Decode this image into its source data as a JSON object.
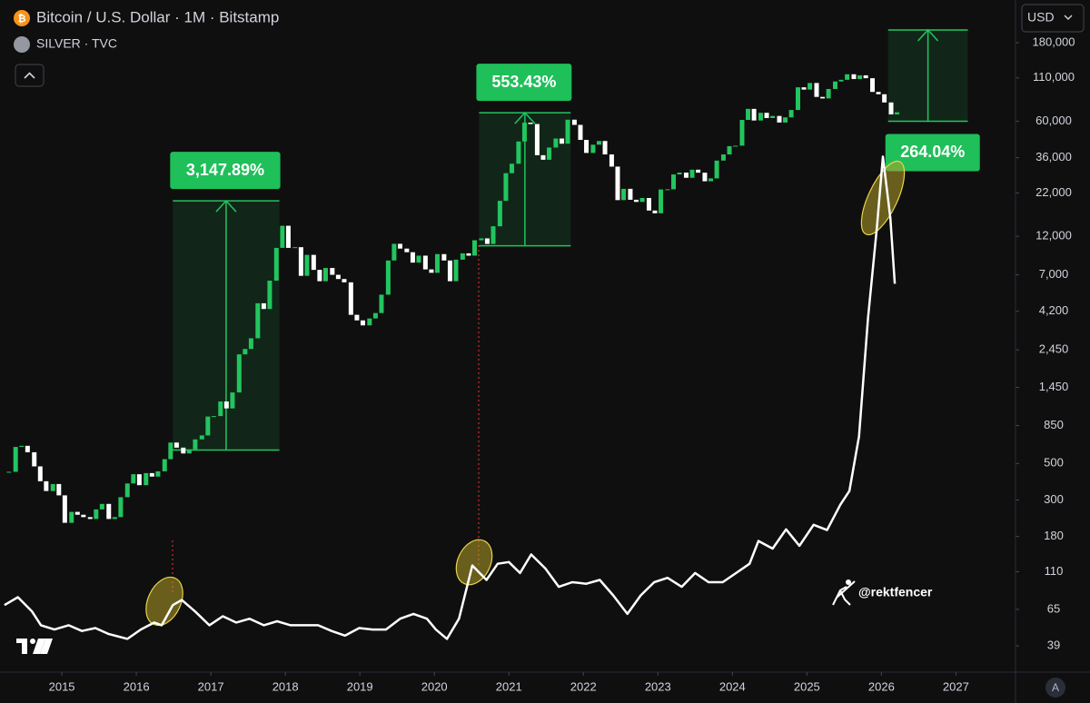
{
  "chart_data": {
    "type": "candlestick",
    "ylog": true,
    "ylim": [
      27,
      327000
    ],
    "yticks": [
      {
        "value": 180000,
        "label": "180,000"
      },
      {
        "value": 110000,
        "label": "110,000"
      },
      {
        "value": 60000,
        "label": "60,000"
      },
      {
        "value": 36000,
        "label": "36,000"
      },
      {
        "value": 22000,
        "label": "22,000"
      },
      {
        "value": 12000,
        "label": "12,000"
      },
      {
        "value": 7000,
        "label": "7,000"
      },
      {
        "value": 4200,
        "label": "4,200"
      },
      {
        "value": 2450,
        "label": "2,450"
      },
      {
        "value": 1450,
        "label": "1,450"
      },
      850,
      500,
      300,
      180,
      110,
      65,
      39
    ],
    "xlim": [
      2014.17,
      2027.8
    ],
    "xticks": [
      2015,
      2016,
      2017,
      2018,
      2019,
      2020,
      2021,
      2022,
      2023,
      2024,
      2025,
      2026,
      2027
    ],
    "currency": "USD",
    "watermark": "@rektfencer",
    "scale_mode": "A",
    "series": [
      {
        "name": "Bitcoin / U.S. Dollar · 1M · Bitstamp",
        "color": "#22c55e",
        "down_color": "#ffffff",
        "x": [
          2014.29,
          2014.38,
          2014.46,
          2014.54,
          2014.63,
          2014.71,
          2014.79,
          2014.88,
          2014.96,
          2015.04,
          2015.13,
          2015.21,
          2015.29,
          2015.38,
          2015.46,
          2015.54,
          2015.63,
          2015.71,
          2015.79,
          2015.88,
          2015.96,
          2016.04,
          2016.13,
          2016.21,
          2016.29,
          2016.38,
          2016.46,
          2016.54,
          2016.63,
          2016.71,
          2016.79,
          2016.88,
          2016.96,
          2017.04,
          2017.13,
          2017.21,
          2017.29,
          2017.38,
          2017.46,
          2017.54,
          2017.63,
          2017.71,
          2017.79,
          2017.88,
          2017.96,
          2018.04,
          2018.13,
          2018.21,
          2018.29,
          2018.38,
          2018.46,
          2018.54,
          2018.63,
          2018.71,
          2018.79,
          2018.88,
          2018.96,
          2019.04,
          2019.13,
          2019.21,
          2019.29,
          2019.38,
          2019.46,
          2019.54,
          2019.63,
          2019.71,
          2019.79,
          2019.88,
          2019.96,
          2020.04,
          2020.13,
          2020.21,
          2020.29,
          2020.38,
          2020.46,
          2020.54,
          2020.63,
          2020.71,
          2020.79,
          2020.88,
          2020.96,
          2021.04,
          2021.13,
          2021.21,
          2021.29,
          2021.38,
          2021.46,
          2021.54,
          2021.63,
          2021.71,
          2021.79,
          2021.88,
          2021.96,
          2022.04,
          2022.13,
          2022.21,
          2022.29,
          2022.38,
          2022.46,
          2022.54,
          2022.63,
          2022.71,
          2022.79,
          2022.88,
          2022.96,
          2023.04,
          2023.13,
          2023.21,
          2023.29,
          2023.38,
          2023.46,
          2023.54,
          2023.63,
          2023.71,
          2023.79,
          2023.88,
          2023.96,
          2024.04,
          2024.13,
          2024.21,
          2024.29,
          2024.38,
          2024.46,
          2024.54,
          2024.63,
          2024.71,
          2024.79,
          2024.88,
          2024.96,
          2025.04,
          2025.13,
          2025.21,
          2025.29,
          2025.38,
          2025.46,
          2025.54,
          2025.63,
          2025.71,
          2025.79,
          2025.88,
          2025.96,
          2026.04,
          2026.13,
          2026.21
        ],
        "values": [
          445,
          630,
          640,
          585,
          480,
          390,
          340,
          375,
          320,
          218,
          254,
          244,
          236,
          230,
          263,
          284,
          230,
          236,
          312,
          378,
          430,
          369,
          437,
          416,
          448,
          531,
          670,
          624,
          575,
          609,
          700,
          740,
          964,
          970,
          1190,
          1080,
          1350,
          2300,
          2480,
          2880,
          4700,
          4340,
          6450,
          10200,
          13900,
          10200,
          10300,
          6900,
          9250,
          7500,
          6400,
          7700,
          7000,
          6600,
          6300,
          4000,
          3700,
          3450,
          3800,
          4100,
          5300,
          8550,
          10800,
          10100,
          9600,
          8300,
          9150,
          7550,
          7200,
          9350,
          8550,
          6400,
          8650,
          9450,
          9150,
          11350,
          11650,
          10780,
          13800,
          19700,
          29000,
          33100,
          45200,
          58800,
          57700,
          37300,
          35000,
          41500,
          47100,
          43800,
          61300,
          57000,
          46200,
          38500,
          43200,
          45500,
          37700,
          31800,
          19900,
          23300,
          20000,
          19400,
          20500,
          17200,
          16550,
          23100,
          23150,
          28500,
          29250,
          27200,
          30450,
          29200,
          25900,
          26960,
          34600,
          37700,
          42300,
          42600,
          61100,
          71300,
          60600,
          67500,
          62700,
          64600,
          58900,
          63300,
          70200,
          96400,
          93400,
          102400,
          84300,
          82500,
          94200,
          104600,
          107100,
          115700,
          108200,
          114000,
          109500,
          90400,
          87500,
          78000,
          66000,
          68000
        ]
      },
      {
        "name": "SILVER · TVC",
        "color": "#ffffff",
        "x": [
          2014.23,
          2014.41,
          2014.6,
          2014.72,
          2014.9,
          2015.09,
          2015.27,
          2015.45,
          2015.63,
          2015.88,
          2016.06,
          2016.24,
          2016.34,
          2016.49,
          2016.61,
          2016.79,
          2016.98,
          2017.16,
          2017.34,
          2017.52,
          2017.71,
          2017.89,
          2018.07,
          2018.26,
          2018.44,
          2018.62,
          2018.8,
          2018.99,
          2019.17,
          2019.35,
          2019.54,
          2019.72,
          2019.9,
          2020.02,
          2020.17,
          2020.33,
          2020.51,
          2020.7,
          2020.85,
          2021.0,
          2021.15,
          2021.3,
          2021.49,
          2021.67,
          2021.85,
          2022.04,
          2022.22,
          2022.4,
          2022.59,
          2022.77,
          2022.95,
          2023.13,
          2023.32,
          2023.5,
          2023.68,
          2023.87,
          2024.05,
          2024.23,
          2024.35,
          2024.54,
          2024.72,
          2024.9,
          2025.09,
          2025.27,
          2025.45,
          2025.57,
          2025.7,
          2025.82,
          2025.94,
          2026.02,
          2026.12,
          2026.18
        ],
        "values": [
          69,
          77,
          63,
          52,
          49,
          52,
          48,
          50,
          46,
          43,
          49,
          54,
          52,
          69,
          74,
          63,
          52,
          59,
          54,
          57,
          52,
          55,
          52,
          52,
          52,
          48,
          45,
          50,
          49,
          49,
          57,
          61,
          57,
          49,
          43,
          57,
          120,
          98,
          123,
          126,
          108,
          140,
          115,
          89,
          95,
          93,
          98,
          79,
          61,
          79,
          95,
          101,
          89,
          108,
          95,
          95,
          108,
          123,
          169,
          152,
          199,
          158,
          212,
          197,
          281,
          340,
          730,
          3810,
          13600,
          36600,
          15500,
          6180
        ]
      }
    ],
    "annotations": [
      {
        "label": "3,147.89%",
        "x": [
          2016.49,
          2017.92
        ],
        "y": [
          603,
          19700
        ]
      },
      {
        "label": "553.43%",
        "x": [
          2020.6,
          2021.83
        ],
        "y": [
          10500,
          67600
        ]
      },
      {
        "label": "264.04%",
        "x": [
          2026.09,
          2027.16
        ],
        "y": [
          60000,
          215000
        ]
      }
    ]
  }
}
